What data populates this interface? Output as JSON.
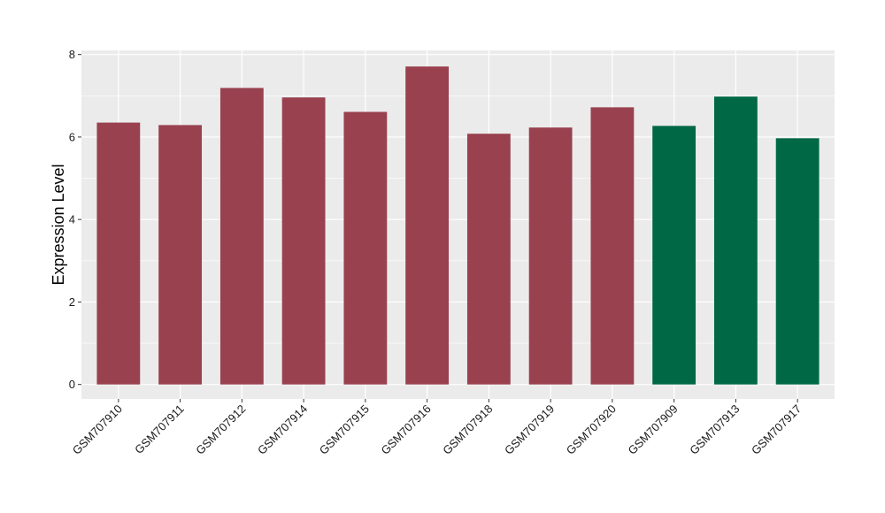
{
  "chart_data": {
    "type": "bar",
    "title": "",
    "xlabel": "",
    "ylabel": "Expression Level",
    "ylim": [
      -0.35,
      8.1
    ],
    "yticks": [
      0,
      2,
      4,
      6,
      8
    ],
    "grid": true,
    "legend": "none",
    "categories": [
      "GSM707910",
      "GSM707911",
      "GSM707912",
      "GSM707914",
      "GSM707915",
      "GSM707916",
      "GSM707918",
      "GSM707919",
      "GSM707920",
      "GSM707909",
      "GSM707913",
      "GSM707917"
    ],
    "values": [
      6.35,
      6.29,
      7.19,
      6.96,
      6.61,
      7.71,
      6.08,
      6.23,
      6.72,
      6.27,
      6.98,
      5.97
    ],
    "groups": [
      "a",
      "a",
      "a",
      "a",
      "a",
      "a",
      "a",
      "a",
      "a",
      "b",
      "b",
      "b"
    ],
    "group_colors": {
      "a": "#99414F",
      "b": "#006845"
    },
    "panel_color": "#EBEBEB",
    "grid_color": "#FFFFFF"
  }
}
